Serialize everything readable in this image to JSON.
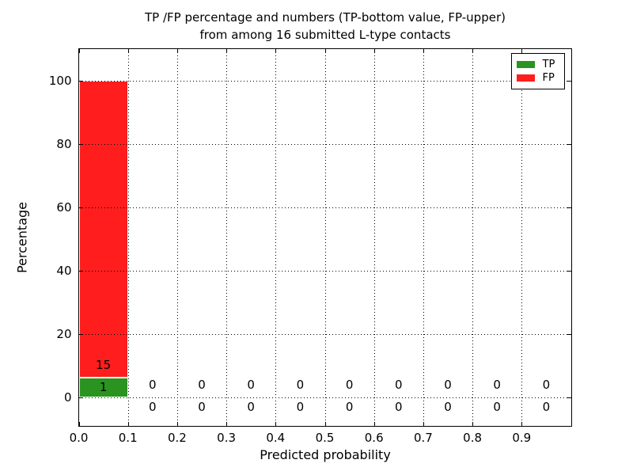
{
  "figure": {
    "title_line1": "TP /FP percentage and numbers (TP-bottom value, FP-upper)",
    "title_line2": "from among 16 submitted L-type contacts",
    "xlabel": "Predicted probability",
    "ylabel": "Percentage"
  },
  "chart_data": {
    "type": "bar",
    "stacked": true,
    "title": "TP /FP percentage and numbers (TP-bottom value, FP-upper) from among 16 submitted L-type contacts",
    "xlabel": "Predicted probability",
    "ylabel": "Percentage",
    "total_submitted_contacts": 16,
    "bin_width": 0.1,
    "bin_starts": [
      0.0,
      0.1,
      0.2,
      0.3,
      0.4,
      0.5,
      0.6,
      0.7,
      0.8,
      0.9
    ],
    "series": [
      {
        "name": "TP",
        "color": "#2b9421",
        "counts": [
          1,
          0,
          0,
          0,
          0,
          0,
          0,
          0,
          0,
          0
        ],
        "percent": [
          6.25,
          0,
          0,
          0,
          0,
          0,
          0,
          0,
          0,
          0
        ]
      },
      {
        "name": "FP",
        "color": "#ff1d1d",
        "counts": [
          15,
          0,
          0,
          0,
          0,
          0,
          0,
          0,
          0,
          0
        ],
        "percent": [
          93.75,
          0,
          0,
          0,
          0,
          0,
          0,
          0,
          0,
          0
        ]
      }
    ],
    "xlim": [
      0.0,
      1.0
    ],
    "ylim": [
      -9,
      110
    ],
    "xticks": {
      "values": [
        0.0,
        0.1,
        0.2,
        0.3,
        0.4,
        0.5,
        0.6,
        0.7,
        0.8,
        0.9
      ],
      "labels": [
        "0.0",
        "0.1",
        "0.2",
        "0.3",
        "0.4",
        "0.5",
        "0.6",
        "0.7",
        "0.8",
        "0.9"
      ]
    },
    "yticks": {
      "values": [
        0,
        20,
        40,
        60,
        80,
        100
      ],
      "labels": [
        "0",
        "20",
        "40",
        "60",
        "80",
        "100"
      ]
    },
    "grid": {
      "style": "dotted",
      "color": "#000000",
      "drawn_above_bars": true
    },
    "count_label_offsets": {
      "fp": 4,
      "tp": -3
    },
    "legend": {
      "position": "upper right",
      "items": [
        {
          "label": "TP",
          "color": "#2b9421"
        },
        {
          "label": "FP",
          "color": "#ff1d1d"
        }
      ]
    }
  }
}
